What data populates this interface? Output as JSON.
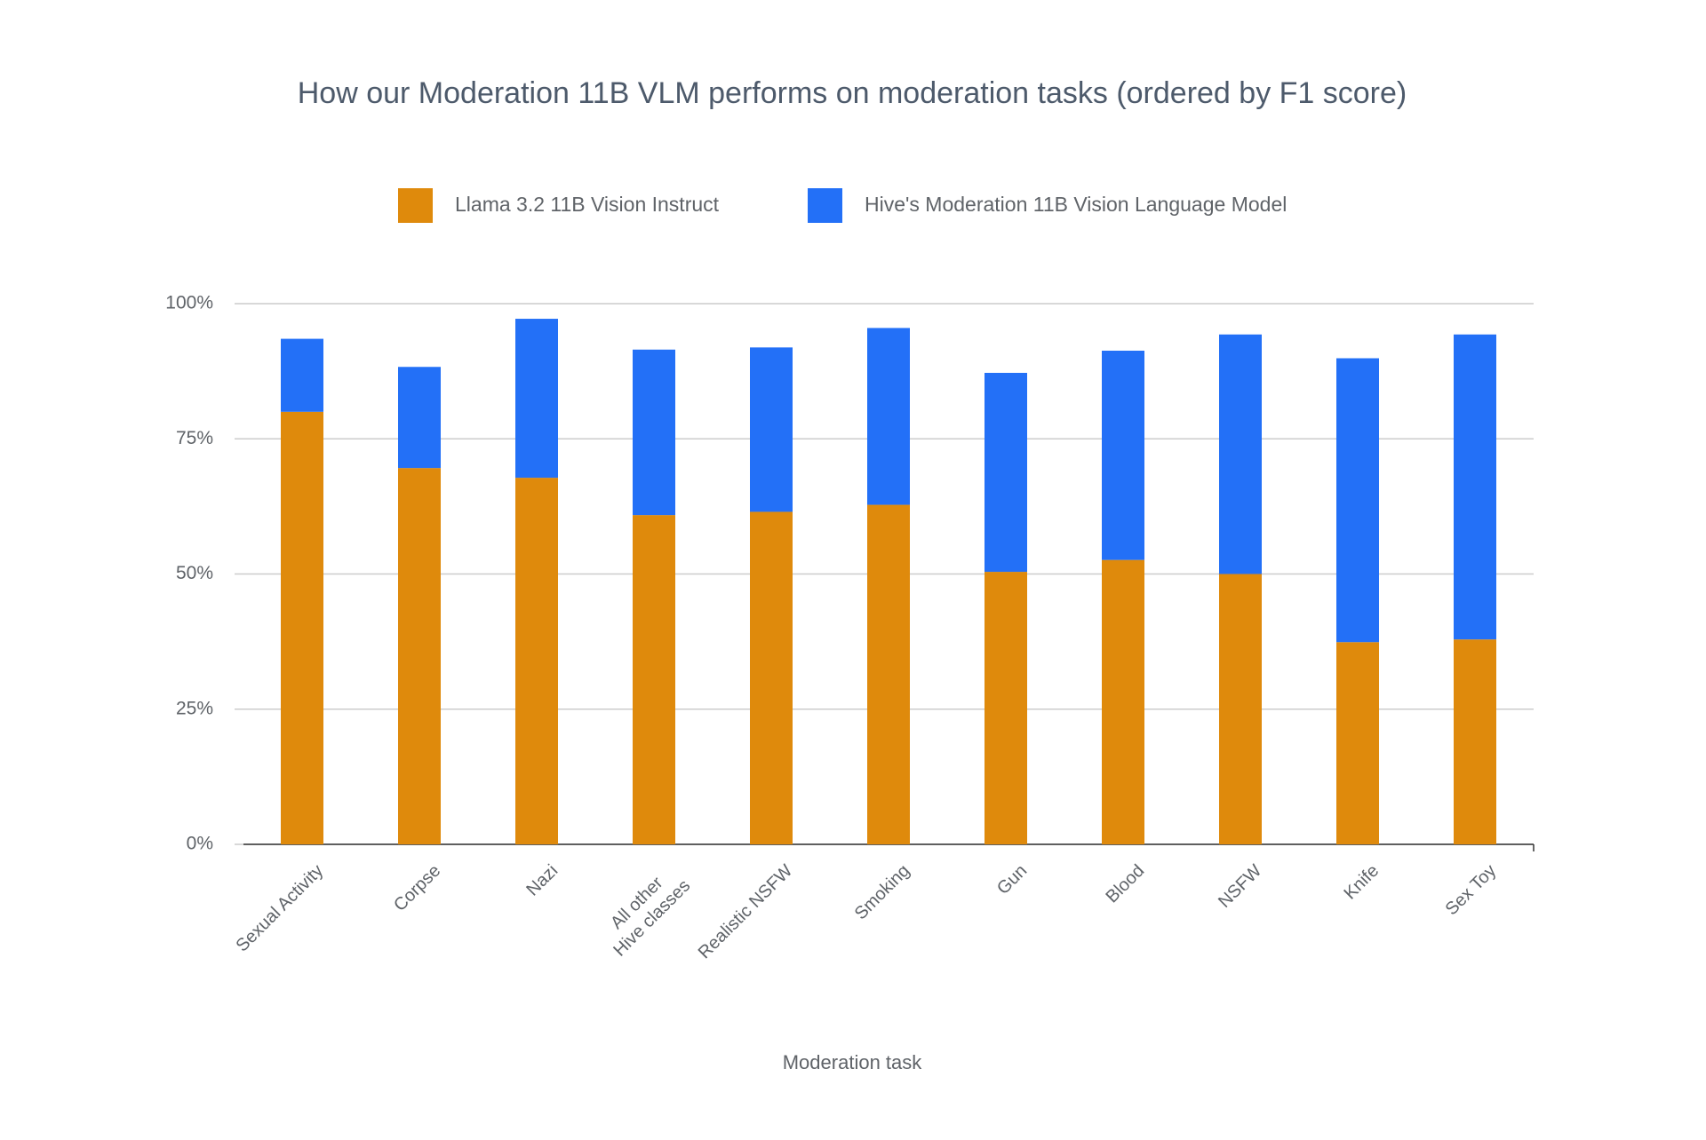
{
  "chart_data": {
    "type": "stacked_bar",
    "title": "How our Moderation 11B VLM performs on moderation tasks (ordered by F1 score)",
    "x_label": "Moderation task",
    "categories": [
      "Sexual Activity",
      "Corpse",
      "Nazi",
      "All other\nHive classes",
      "Realistic NSFW",
      "Smoking",
      "Gun",
      "Blood",
      "NSFW",
      "Knife",
      "Sex Toy"
    ],
    "series": [
      {
        "name": "Llama 3.2 11B Vision Instruct",
        "color": "#df8a0c",
        "values": [
          80.0,
          69.6,
          67.8,
          60.9,
          61.5,
          62.8,
          50.4,
          52.6,
          50.0,
          37.4,
          37.9
        ]
      },
      {
        "name": "Hive's Moderation 11B Vision Language Model",
        "color": "#2370f7",
        "values": [
          13.5,
          18.7,
          29.4,
          30.6,
          30.4,
          32.7,
          36.8,
          38.7,
          44.3,
          52.5,
          56.4
        ]
      }
    ],
    "ylim": [
      0,
      100
    ],
    "yticks": [
      {
        "value": 0,
        "label": "0%"
      },
      {
        "value": 25,
        "label": "25%"
      },
      {
        "value": 50,
        "label": "50%"
      },
      {
        "value": 75,
        "label": "75%"
      },
      {
        "value": 100,
        "label": "100%"
      }
    ],
    "grid": true,
    "legend": "top"
  }
}
